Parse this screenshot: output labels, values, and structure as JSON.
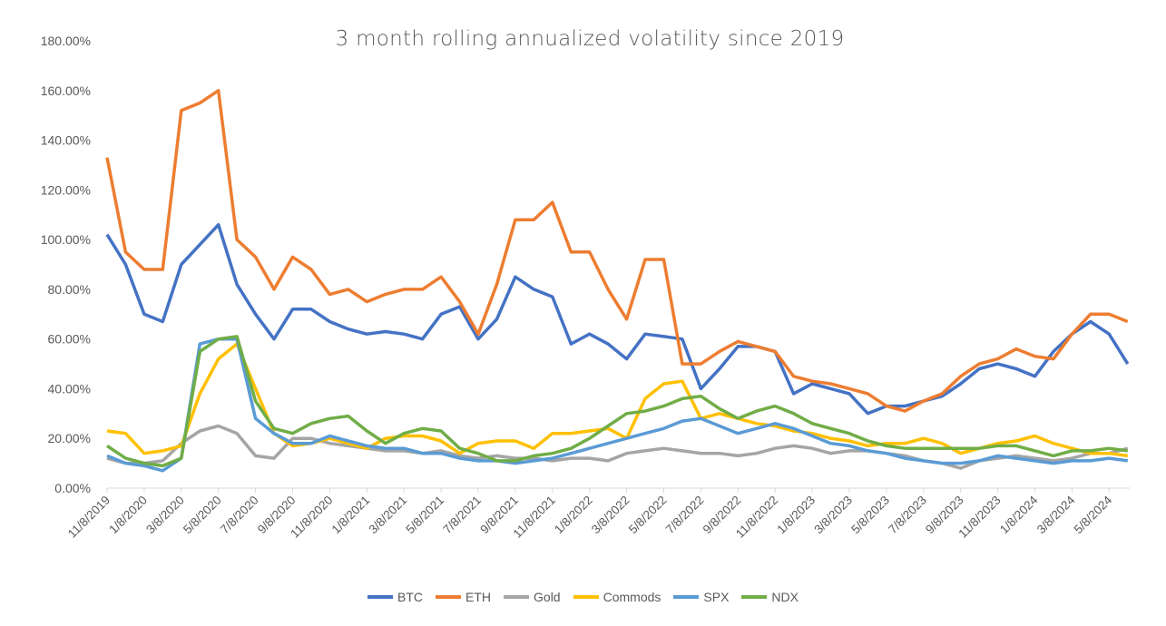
{
  "chart_data": {
    "type": "line",
    "title": "3 month rolling annualized volatility since 2019",
    "xlabel": "",
    "ylabel": "",
    "ylim": [
      0,
      180
    ],
    "y_tick_labels": [
      "0.00%",
      "20.00%",
      "40.00%",
      "60.00%",
      "80.00%",
      "100.00%",
      "120.00%",
      "140.00%",
      "160.00%",
      "180.00%"
    ],
    "x_tick_labels": [
      "11/8/2019",
      "1/8/2020",
      "3/8/2020",
      "5/8/2020",
      "7/8/2020",
      "9/8/2020",
      "11/8/2020",
      "1/8/2021",
      "3/8/2021",
      "5/8/2021",
      "7/8/2021",
      "9/8/2021",
      "11/8/2021",
      "1/8/2022",
      "3/8/2022",
      "5/8/2022",
      "7/8/2022",
      "9/8/2022",
      "11/8/2022",
      "1/8/2023",
      "3/8/2023",
      "5/8/2023",
      "7/8/2023",
      "9/8/2023",
      "11/8/2023",
      "1/8/2024",
      "3/8/2024",
      "5/8/2024"
    ],
    "x": [
      "11/8/2019",
      "12/8/2019",
      "1/8/2020",
      "2/8/2020",
      "3/8/2020",
      "4/8/2020",
      "5/8/2020",
      "6/8/2020",
      "7/8/2020",
      "8/8/2020",
      "9/8/2020",
      "10/8/2020",
      "11/8/2020",
      "12/8/2020",
      "1/8/2021",
      "2/8/2021",
      "3/8/2021",
      "4/8/2021",
      "5/8/2021",
      "6/8/2021",
      "7/8/2021",
      "8/8/2021",
      "9/8/2021",
      "10/8/2021",
      "11/8/2021",
      "12/8/2021",
      "1/8/2022",
      "2/8/2022",
      "3/8/2022",
      "4/8/2022",
      "5/8/2022",
      "6/8/2022",
      "7/8/2022",
      "8/8/2022",
      "9/8/2022",
      "10/8/2022",
      "11/8/2022",
      "12/8/2022",
      "1/8/2023",
      "2/8/2023",
      "3/8/2023",
      "4/8/2023",
      "5/8/2023",
      "6/8/2023",
      "7/8/2023",
      "8/8/2023",
      "9/8/2023",
      "10/8/2023",
      "11/8/2023",
      "12/8/2023",
      "1/8/2024",
      "2/8/2024",
      "3/8/2024",
      "4/8/2024",
      "5/8/2024",
      "6/8/2024"
    ],
    "grid": false,
    "legend": "bottom",
    "series": [
      {
        "name": "BTC",
        "color": "#4472C4",
        "values": [
          102,
          90,
          70,
          67,
          90,
          98,
          106,
          82,
          70,
          60,
          72,
          72,
          67,
          64,
          62,
          63,
          62,
          60,
          70,
          73,
          60,
          68,
          85,
          80,
          77,
          58,
          62,
          58,
          52,
          62,
          61,
          60,
          40,
          48,
          57,
          57,
          55,
          38,
          42,
          40,
          38,
          30,
          33,
          33,
          35,
          37,
          42,
          48,
          50,
          48,
          45,
          55,
          62,
          67,
          62,
          50
        ]
      },
      {
        "name": "ETH",
        "color": "#ED7D31",
        "values": [
          133,
          95,
          88,
          88,
          152,
          155,
          160,
          100,
          93,
          80,
          93,
          88,
          78,
          80,
          75,
          78,
          80,
          80,
          85,
          75,
          62,
          82,
          108,
          108,
          115,
          95,
          95,
          80,
          68,
          92,
          92,
          50,
          50,
          55,
          59,
          57,
          55,
          45,
          43,
          42,
          40,
          38,
          33,
          31,
          35,
          38,
          45,
          50,
          52,
          56,
          53,
          52,
          62,
          70,
          70,
          67
        ]
      },
      {
        "name": "Gold",
        "color": "#A5A5A5",
        "values": [
          12,
          10,
          10,
          11,
          18,
          23,
          25,
          22,
          13,
          12,
          20,
          20,
          18,
          17,
          16,
          15,
          15,
          14,
          15,
          13,
          12,
          13,
          12,
          12,
          11,
          12,
          12,
          11,
          14,
          15,
          16,
          15,
          14,
          14,
          13,
          14,
          16,
          17,
          16,
          14,
          15,
          15,
          14,
          13,
          11,
          10,
          8,
          11,
          12,
          13,
          12,
          11,
          12,
          14,
          14,
          16
        ]
      },
      {
        "name": "Commods",
        "color": "#FFC000",
        "values": [
          23,
          22,
          14,
          15,
          17,
          38,
          52,
          58,
          40,
          22,
          17,
          18,
          20,
          18,
          16,
          20,
          21,
          21,
          19,
          14,
          18,
          19,
          19,
          16,
          22,
          22,
          23,
          24,
          20,
          36,
          42,
          43,
          28,
          30,
          28,
          26,
          25,
          23,
          22,
          20,
          19,
          17,
          18,
          18,
          20,
          18,
          14,
          16,
          18,
          19,
          21,
          18,
          16,
          14,
          14,
          13
        ]
      },
      {
        "name": "SPX",
        "color": "#5B9BD5",
        "values": [
          13,
          10,
          9,
          7,
          12,
          58,
          60,
          60,
          28,
          22,
          18,
          18,
          21,
          19,
          17,
          16,
          16,
          14,
          14,
          12,
          11,
          11,
          10,
          11,
          12,
          14,
          16,
          18,
          20,
          22,
          24,
          27,
          28,
          25,
          22,
          24,
          26,
          24,
          21,
          18,
          17,
          15,
          14,
          12,
          11,
          10,
          10,
          11,
          13,
          12,
          11,
          10,
          11,
          11,
          12,
          11
        ]
      },
      {
        "name": "NDX",
        "color": "#70AD47",
        "values": [
          17,
          12,
          10,
          9,
          12,
          55,
          60,
          61,
          35,
          24,
          22,
          26,
          28,
          29,
          23,
          18,
          22,
          24,
          23,
          16,
          14,
          11,
          11,
          13,
          14,
          16,
          20,
          25,
          30,
          31,
          33,
          36,
          37,
          32,
          28,
          31,
          33,
          30,
          26,
          24,
          22,
          19,
          17,
          16,
          16,
          16,
          16,
          16,
          17,
          17,
          15,
          13,
          15,
          15,
          16,
          15
        ]
      }
    ]
  }
}
